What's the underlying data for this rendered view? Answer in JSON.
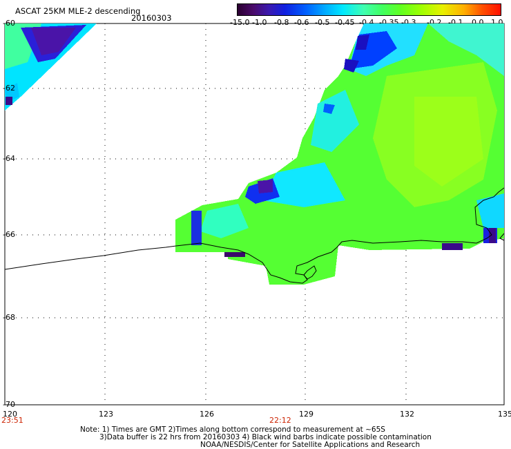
{
  "title": "ASCAT 25KM MLE-2 descending",
  "date": "20160303",
  "colorbar": {
    "labels": [
      "-15.0",
      "-1.0",
      "-0.8",
      "-0.6",
      "-0.5",
      "-0.45",
      "-0.4",
      "-0.35",
      "-0.3",
      "-0.2",
      "-0.1",
      "0.0",
      "1.0"
    ],
    "colors": [
      "#3a004a",
      "#4a1080",
      "#2a10c0",
      "#0030ff",
      "#0090ff",
      "#00d8ff",
      "#40ffd0",
      "#40ff90",
      "#50ff30",
      "#90ff00",
      "#e0f000",
      "#ffa000",
      "#ff2000"
    ]
  },
  "latitude_labels": [
    "-60",
    "-62",
    "-64",
    "-66",
    "-68",
    "-70"
  ],
  "longitude_labels": [
    "120",
    "123",
    "126",
    "129",
    "132",
    "135"
  ],
  "time_labels": [
    "23:51",
    "22:12"
  ],
  "notes": [
    "Note: 1) Times are GMT 2)Times along bottom correspond to measurement at ~65S",
    "3)Data buffer is 22 hrs from 20160303 4) Black wind barbs indicate possible contamination",
    "NOAA/NESDIS/Center for Satellite Applications and Research"
  ]
}
